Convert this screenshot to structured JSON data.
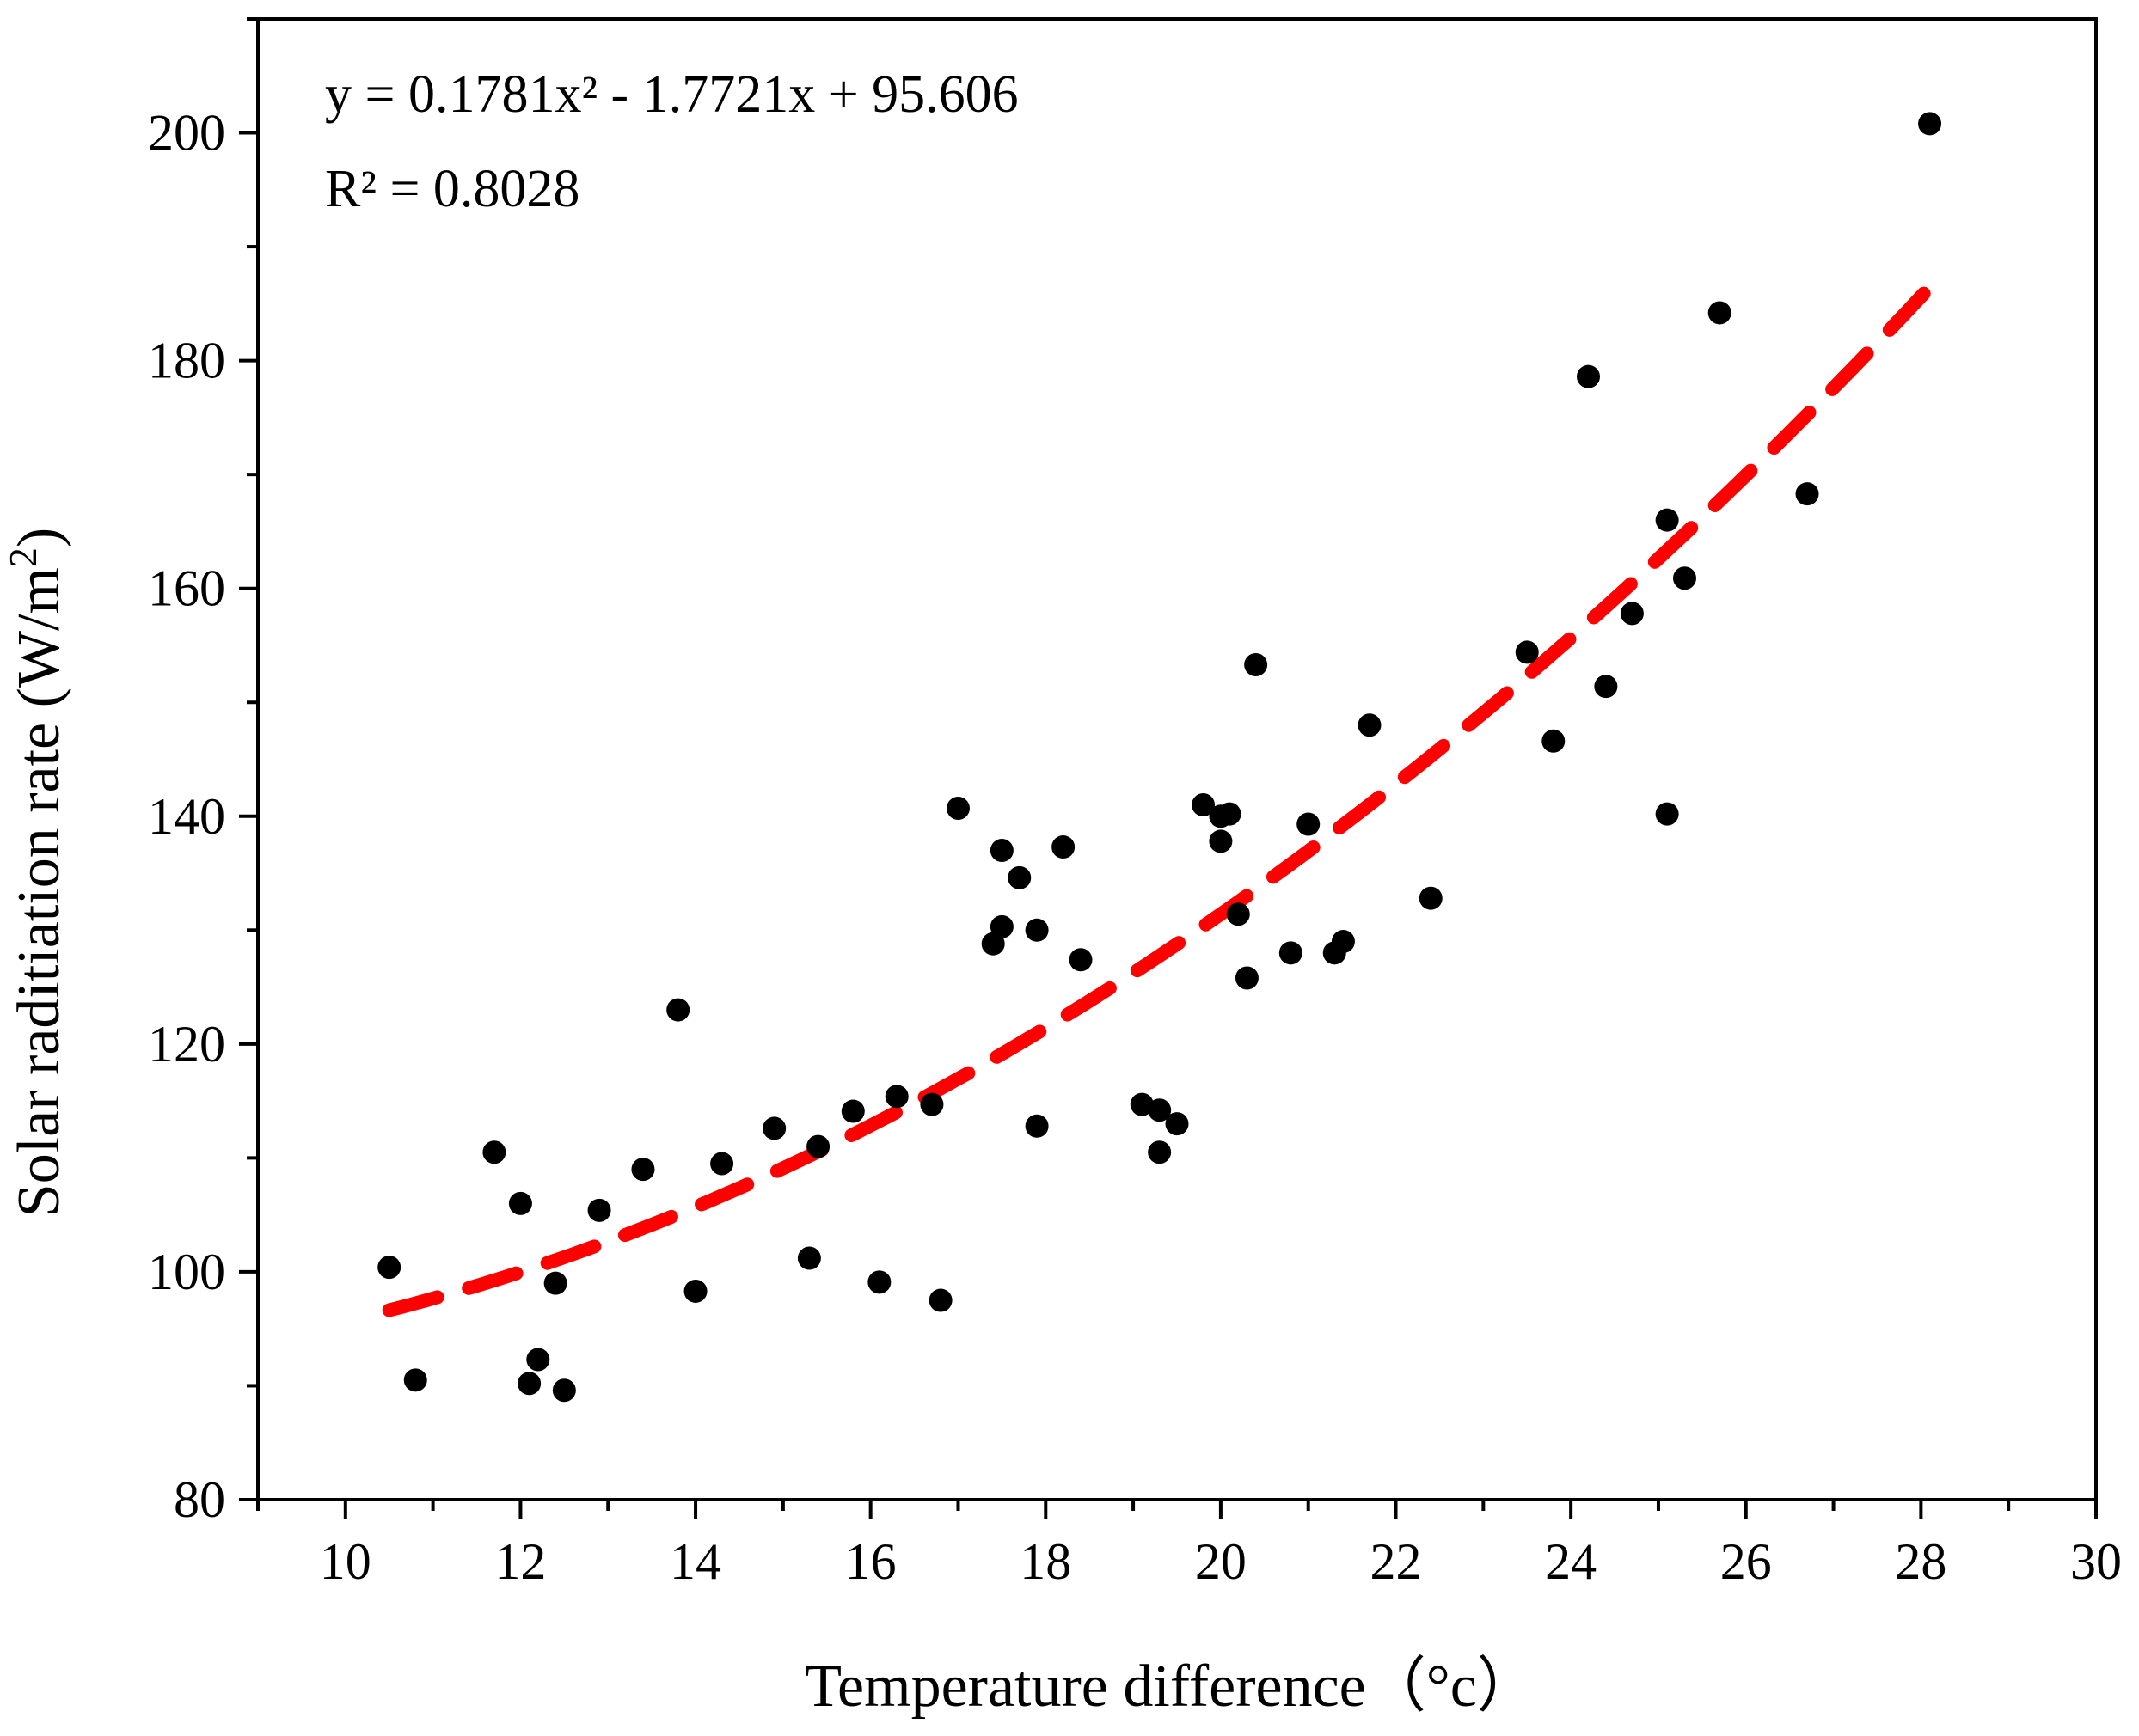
{
  "chart_data": {
    "type": "scatter",
    "title": "",
    "xlabel": "Temperature difference（°c）",
    "ylabel": "Solar raditiation rate (W/m²)",
    "ylabel_main": "Solar raditiation rate (W/m",
    "ylabel_sup": "2",
    "ylabel_close": ")",
    "xlim": [
      9,
      30
    ],
    "ylim": [
      80,
      210
    ],
    "x_ticks": [
      10,
      12,
      14,
      16,
      18,
      20,
      22,
      24,
      26,
      28,
      30
    ],
    "y_ticks": [
      80,
      100,
      120,
      140,
      160,
      180,
      200
    ],
    "x_tick_labels": [
      "10",
      "12",
      "14",
      "16",
      "18",
      "20",
      "22",
      "24",
      "26",
      "28",
      "30"
    ],
    "y_tick_labels": [
      "80",
      "100",
      "120",
      "140",
      "160",
      "180",
      "200"
    ],
    "grid": false,
    "annotations": {
      "equation": "y = 0.1781x² - 1.7721x + 95.606",
      "r_squared": "R² = 0.8028"
    },
    "series": [
      {
        "name": "Observations",
        "kind": "scatter",
        "color": "#000000",
        "points": [
          [
            10.5,
            100.4
          ],
          [
            10.8,
            90.5
          ],
          [
            11.7,
            110.5
          ],
          [
            12.0,
            106.0
          ],
          [
            12.1,
            90.2
          ],
          [
            12.2,
            92.3
          ],
          [
            12.4,
            99.0
          ],
          [
            12.5,
            89.6
          ],
          [
            12.9,
            105.4
          ],
          [
            13.4,
            109.0
          ],
          [
            13.8,
            123.0
          ],
          [
            14.0,
            98.3
          ],
          [
            14.3,
            109.5
          ],
          [
            14.9,
            112.6
          ],
          [
            15.3,
            101.2
          ],
          [
            15.4,
            111.0
          ],
          [
            15.8,
            114.1
          ],
          [
            16.1,
            99.1
          ],
          [
            16.3,
            115.4
          ],
          [
            16.7,
            114.7
          ],
          [
            16.8,
            97.5
          ],
          [
            17.0,
            140.7
          ],
          [
            17.4,
            128.8
          ],
          [
            17.5,
            137.0
          ],
          [
            17.5,
            130.3
          ],
          [
            17.7,
            134.6
          ],
          [
            17.9,
            130.0
          ],
          [
            17.9,
            112.8
          ],
          [
            18.2,
            137.3
          ],
          [
            18.4,
            127.4
          ],
          [
            19.1,
            114.7
          ],
          [
            19.3,
            114.2
          ],
          [
            19.3,
            110.5
          ],
          [
            19.5,
            113.0
          ],
          [
            19.8,
            141.0
          ],
          [
            20.0,
            140.0
          ],
          [
            20.0,
            137.8
          ],
          [
            20.1,
            140.2
          ],
          [
            20.2,
            131.4
          ],
          [
            20.3,
            125.8
          ],
          [
            20.4,
            153.3
          ],
          [
            20.8,
            128.0
          ],
          [
            21.0,
            139.3
          ],
          [
            21.3,
            128.0
          ],
          [
            21.4,
            129.0
          ],
          [
            21.7,
            148.0
          ],
          [
            22.4,
            132.8
          ],
          [
            23.5,
            154.4
          ],
          [
            23.8,
            146.6
          ],
          [
            24.2,
            178.6
          ],
          [
            24.4,
            151.4
          ],
          [
            24.7,
            157.8
          ],
          [
            25.1,
            166.0
          ],
          [
            25.1,
            140.2
          ],
          [
            25.3,
            160.9
          ],
          [
            25.7,
            184.2
          ],
          [
            26.7,
            168.3
          ],
          [
            28.1,
            200.8
          ]
        ]
      },
      {
        "name": "Quadratic fit",
        "kind": "fit",
        "color": "#ff0000",
        "coefficients": {
          "a": 0.1781,
          "b": -1.7721,
          "c": 95.606
        },
        "x_range": [
          10.5,
          28.1
        ]
      }
    ]
  }
}
